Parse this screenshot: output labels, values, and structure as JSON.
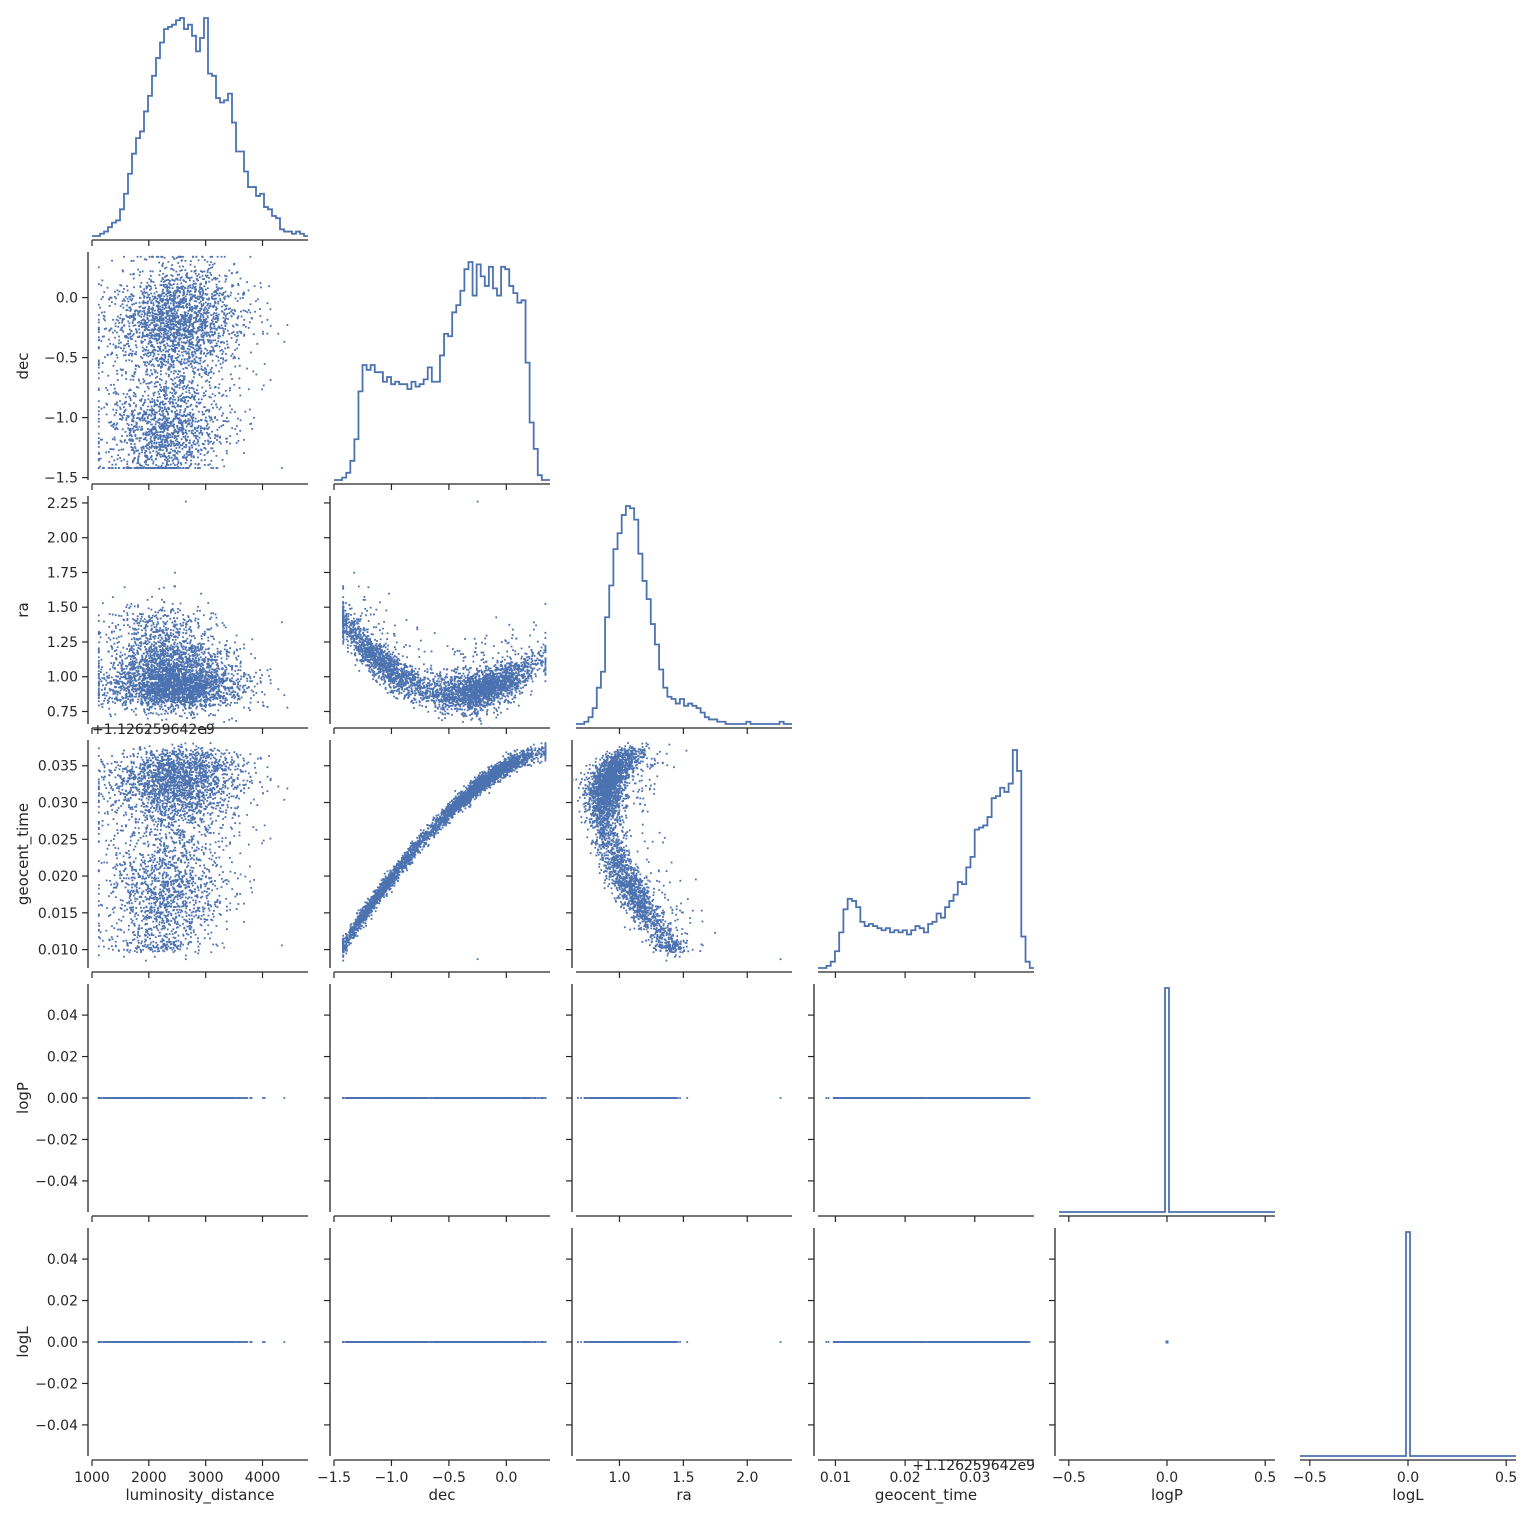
{
  "chart_data": {
    "type": "scatter",
    "title": "",
    "grid": false,
    "legend": "none",
    "colors": {
      "marks": "#4c72b0",
      "axis": "#262626",
      "text": "#262626",
      "background": "#ffffff"
    },
    "variables": [
      "luminosity_distance",
      "dec",
      "ra",
      "geocent_time",
      "logP",
      "logL"
    ],
    "axis_labels": {
      "x": [
        "luminosity_distance",
        "dec",
        "ra",
        "geocent_time",
        "logP",
        "logL"
      ],
      "y": [
        "",
        "dec",
        "ra",
        "geocent_time",
        "logP",
        "logL"
      ]
    },
    "offset_text": "+1.126259642e9",
    "x_ticks": {
      "luminosity_distance": [
        "1000",
        "2000",
        "3000",
        "4000"
      ],
      "dec": [
        "−1.5",
        "−1.0",
        "−0.5",
        "0.0"
      ],
      "ra": [
        "1.0",
        "1.5",
        "2.0"
      ],
      "geocent_time": [
        "0.01",
        "0.02",
        "0.03"
      ],
      "logP": [
        "−0.5",
        "0.0",
        "0.5"
      ],
      "logL": [
        "−0.5",
        "0.0",
        "0.5"
      ]
    },
    "y_ticks": {
      "dec": [
        "0.0",
        "−0.5",
        "−1.0",
        "−1.5"
      ],
      "ra": [
        "2.25",
        "2.00",
        "1.75",
        "1.50",
        "1.25",
        "1.00",
        "0.75"
      ],
      "geocent_time": [
        "0.035",
        "0.030",
        "0.025",
        "0.020",
        "0.015",
        "0.010"
      ],
      "logP": [
        "0.04",
        "0.02",
        "0.00",
        "−0.02",
        "−0.04"
      ],
      "logL": [
        "0.04",
        "0.02",
        "0.00",
        "−0.02",
        "−0.04"
      ]
    },
    "ranges": {
      "luminosity_distance": [
        1000,
        4800
      ],
      "dec": [
        -1.5,
        0.38
      ],
      "ra": [
        0.66,
        2.35
      ],
      "geocent_time": [
        0.0075,
        0.0385
      ],
      "logP": [
        -0.55,
        0.55
      ],
      "logL": [
        -0.55,
        0.55
      ]
    },
    "y_ranges": {
      "dec": [
        -1.52,
        0.38
      ],
      "ra": [
        0.66,
        2.3
      ],
      "geocent_time": [
        0.0075,
        0.0385
      ],
      "logP": [
        -0.055,
        0.055
      ],
      "logL": [
        -0.055,
        0.055
      ]
    },
    "histograms": {
      "luminosity_distance": {
        "bins": [
          1000,
          4800
        ],
        "counts": [
          0,
          0,
          1,
          2,
          4,
          6,
          7,
          12,
          19,
          28,
          37,
          44,
          47,
          56,
          63,
          72,
          80,
          87,
          93,
          94,
          95,
          97,
          98,
          93,
          95,
          90,
          83,
          89,
          98,
          73,
          72,
          62,
          60,
          61,
          64,
          51,
          38,
          38,
          29,
          22,
          22,
          18,
          19,
          13,
          12,
          9,
          8,
          3,
          2,
          2,
          1,
          2,
          1,
          0
        ]
      },
      "dec": {
        "bins": [
          -1.5,
          0.38
        ],
        "counts": [
          0,
          0,
          1,
          3,
          8,
          17,
          37,
          48,
          46,
          48,
          45,
          45,
          41,
          43,
          40,
          41,
          40,
          40,
          38,
          41,
          39,
          40,
          42,
          47,
          41,
          41,
          52,
          61,
          60,
          70,
          73,
          79,
          88,
          91,
          77,
          90,
          85,
          81,
          89,
          80,
          77,
          89,
          88,
          81,
          78,
          74,
          75,
          49,
          24,
          13,
          2,
          0,
          0
        ]
      },
      "ra": {
        "bins": [
          0.66,
          2.35
        ],
        "counts": [
          0,
          0,
          1,
          3,
          7,
          16,
          23,
          47,
          61,
          77,
          84,
          92,
          96,
          95,
          90,
          75,
          63,
          55,
          44,
          35,
          24,
          16,
          12,
          11,
          9,
          11,
          8,
          9,
          8,
          7,
          5,
          3,
          2,
          2,
          1,
          1,
          0,
          0,
          0,
          0,
          0,
          1,
          0,
          0,
          0,
          0,
          0,
          0,
          0,
          1,
          0,
          0
        ]
      },
      "geocent_time": {
        "bins": [
          0.0075,
          0.0385
        ],
        "counts": [
          0,
          0,
          1,
          3,
          8,
          17,
          28,
          33,
          32,
          29,
          22,
          20,
          21,
          20,
          19,
          18,
          19,
          17,
          18,
          17,
          18,
          16,
          18,
          20,
          19,
          17,
          21,
          22,
          26,
          24,
          29,
          32,
          35,
          41,
          40,
          48,
          53,
          66,
          67,
          68,
          72,
          81,
          82,
          86,
          84,
          88,
          104,
          94,
          15,
          3,
          0
        ]
      },
      "logP": {
        "value": 0.0,
        "peak": 0.05
      },
      "logL": {
        "value": 0.0,
        "peak": 0.05
      }
    },
    "scatter": [
      {
        "x": "luminosity_distance",
        "y": "dec",
        "description": "weak positive trend, dense cluster near dec 0.0 to -0.3 between 2000-4000; secondary clump near dec -1.2"
      },
      {
        "x": "luminosity_distance",
        "y": "ra",
        "description": "broad cloud centered ra ~1.05, distance 1200-4500, outlier ra 2.27 at ~2650"
      },
      {
        "x": "dec",
        "y": "ra",
        "description": "U-shaped curve: ra ~1.6 at dec -1.3, minimum ~0.9 at dec -0.5, ~1.25 at dec 0.3"
      },
      {
        "x": "luminosity_distance",
        "y": "geocent_time",
        "description": "dense band 0.030-0.037 above 2500; lower clump near 0.012"
      },
      {
        "x": "dec",
        "y": "geocent_time",
        "description": "tight monotonic curve from (dec -1.4, 0.009) to (dec 0.3, 0.037)"
      },
      {
        "x": "ra",
        "y": "geocent_time",
        "description": "crescent: high times 0.030-0.037 at ra 0.8-1.3, falling to 0.011 at ra 1.5-1.9"
      },
      {
        "x": "all",
        "y": "logP",
        "description": "all samples at logP = 0.0"
      },
      {
        "x": "all",
        "y": "logL",
        "description": "all samples at logL = 0.0"
      }
    ]
  }
}
